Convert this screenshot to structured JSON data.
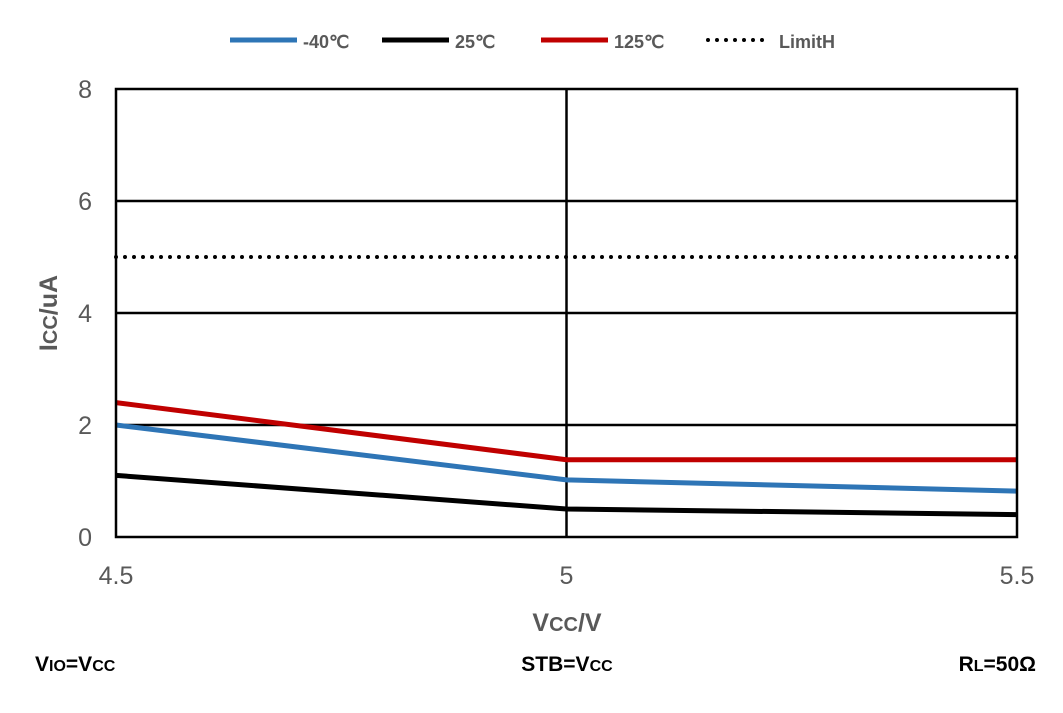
{
  "chart_data": {
    "type": "line",
    "x": [
      4.5,
      5,
      5.5
    ],
    "x_tick_labels": [
      "4.5",
      "5",
      "5.5"
    ],
    "y_tick_labels": [
      "0",
      "2",
      "4",
      "6",
      "8"
    ],
    "xlim": [
      4.5,
      5.5
    ],
    "ylim": [
      0,
      8
    ],
    "xlabel_main": "V",
    "xlabel_sub": "CC",
    "xlabel_suffix": "/V",
    "ylabel_main": "I",
    "ylabel_sub": "CC",
    "ylabel_suffix": "/uA",
    "grid": true,
    "legend_position": "top",
    "series": [
      {
        "name": "-40℃",
        "values": [
          2.0,
          1.02,
          0.82
        ],
        "color": "#2E75B6",
        "style": "solid"
      },
      {
        "name": "25℃",
        "values": [
          1.1,
          0.5,
          0.4
        ],
        "color": "#000000",
        "style": "solid"
      },
      {
        "name": "125℃",
        "values": [
          2.4,
          1.38,
          1.38
        ],
        "color": "#C00000",
        "style": "solid"
      },
      {
        "name": "LimitH",
        "values": [
          5,
          5,
          5
        ],
        "color": "#000000",
        "style": "dotted"
      }
    ]
  },
  "conditions": {
    "left": {
      "main": "V",
      "sub": "IO",
      "mid": "=V",
      "sub2": "CC"
    },
    "center": {
      "main": "STB=V",
      "sub": "CC"
    },
    "right": {
      "main": "R",
      "sub": "L",
      "suffix": "=50Ω"
    }
  }
}
